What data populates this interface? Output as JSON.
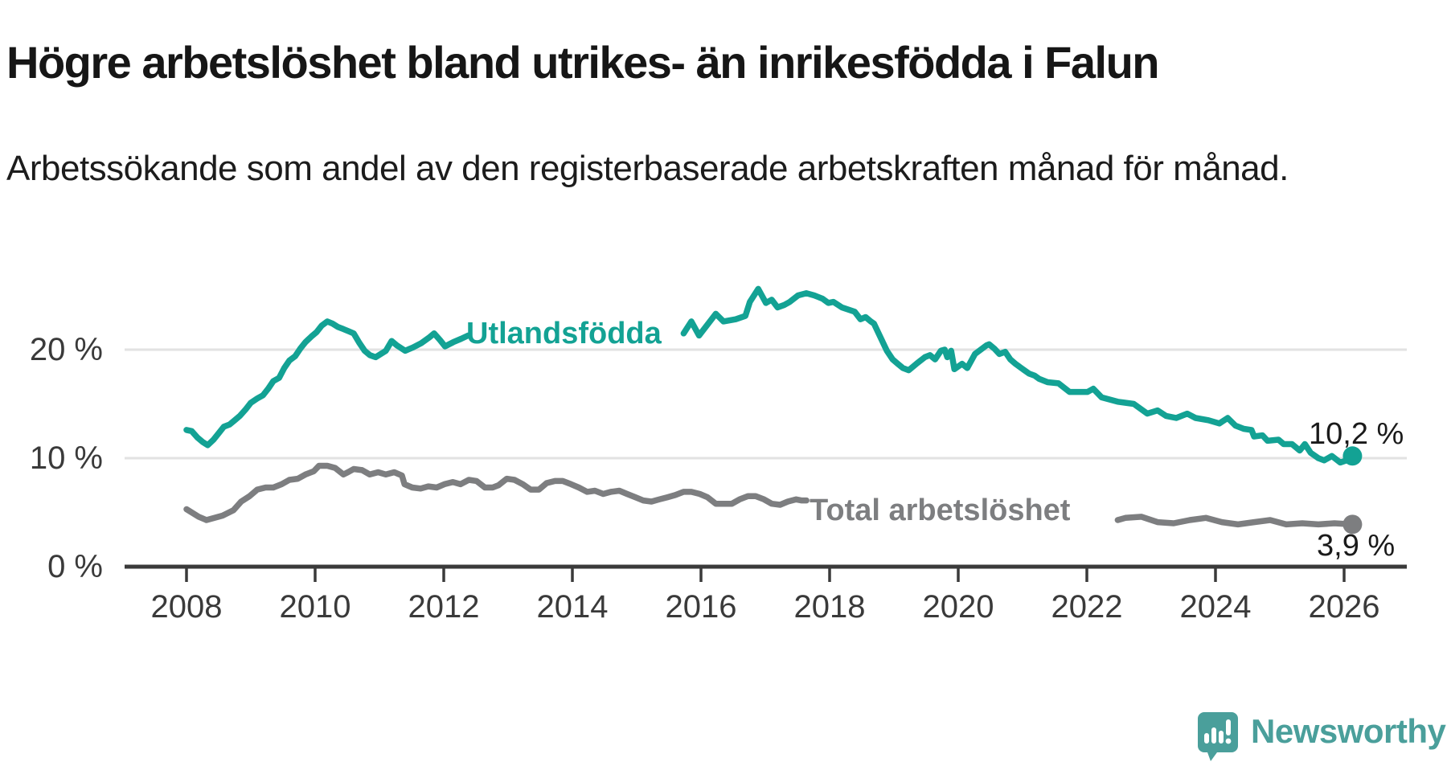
{
  "header": {
    "title": "Högre arbetslöshet bland utrikes- än inrikesfödda i Falun",
    "subtitle": "Arbetssökande som andel av den registerbaserade arbetskraften månad för månad."
  },
  "chart_data": {
    "type": "line",
    "unit": "%",
    "grid": "horizontal-only",
    "x_axis": {
      "min": 2008,
      "max": 2026.5,
      "tick_years": [
        2008,
        2010,
        2012,
        2014,
        2016,
        2018,
        2020,
        2022,
        2024,
        2026
      ],
      "tick_labels": [
        "2008",
        "2010",
        "2012",
        "2014",
        "2016",
        "2018",
        "2020",
        "2022",
        "2024",
        "2026"
      ]
    },
    "y_axis": {
      "min": 0,
      "max": 26,
      "ticks": [
        0,
        10,
        20
      ],
      "tick_labels": [
        "0 %",
        "10 %",
        "20 %"
      ]
    },
    "series": [
      {
        "name": "Utlandsfödda",
        "color": "#13a294",
        "end_label": "10,2 %",
        "end_value": 10.2,
        "label_note": "inline label drawn over a gap in the line 2012-2016",
        "segments": [
          [
            [
              2008.0,
              12.6
            ],
            [
              2008.08,
              12.5
            ],
            [
              2008.17,
              11.9
            ],
            [
              2008.25,
              11.5
            ],
            [
              2008.33,
              11.2
            ],
            [
              2008.42,
              11.7
            ],
            [
              2008.5,
              12.3
            ],
            [
              2008.58,
              12.9
            ],
            [
              2008.67,
              13.1
            ],
            [
              2008.75,
              13.5
            ],
            [
              2008.83,
              13.9
            ],
            [
              2008.92,
              14.5
            ],
            [
              2009.0,
              15.1
            ],
            [
              2009.1,
              15.5
            ],
            [
              2009.19,
              15.8
            ],
            [
              2009.27,
              16.4
            ],
            [
              2009.35,
              17.1
            ],
            [
              2009.44,
              17.4
            ],
            [
              2009.52,
              18.3
            ],
            [
              2009.6,
              19.0
            ],
            [
              2009.69,
              19.4
            ],
            [
              2009.77,
              20.1
            ],
            [
              2009.85,
              20.7
            ],
            [
              2009.94,
              21.2
            ],
            [
              2010.02,
              21.6
            ],
            [
              2010.1,
              22.2
            ],
            [
              2010.19,
              22.6
            ],
            [
              2010.27,
              22.4
            ],
            [
              2010.35,
              22.1
            ],
            [
              2010.44,
              21.9
            ],
            [
              2010.52,
              21.7
            ],
            [
              2010.6,
              21.5
            ],
            [
              2010.69,
              20.6
            ],
            [
              2010.77,
              19.9
            ],
            [
              2010.85,
              19.5
            ],
            [
              2010.94,
              19.3
            ],
            [
              2011.02,
              19.6
            ],
            [
              2011.1,
              19.9
            ],
            [
              2011.19,
              20.8
            ],
            [
              2011.27,
              20.4
            ],
            [
              2011.4,
              19.9
            ],
            [
              2011.52,
              20.2
            ],
            [
              2011.65,
              20.6
            ],
            [
              2011.77,
              21.1
            ],
            [
              2011.85,
              21.5
            ],
            [
              2011.94,
              20.9
            ],
            [
              2012.02,
              20.3
            ],
            [
              2012.15,
              20.7
            ],
            [
              2012.27,
              21.0
            ],
            [
              2012.38,
              21.3
            ]
          ],
          [
            [
              2015.73,
              21.5
            ],
            [
              2015.85,
              22.6
            ],
            [
              2015.97,
              21.3
            ],
            [
              2016.23,
              23.3
            ],
            [
              2016.35,
              22.6
            ],
            [
              2016.54,
              22.8
            ],
            [
              2016.69,
              23.1
            ],
            [
              2016.76,
              24.4
            ],
            [
              2016.89,
              25.6
            ],
            [
              2017.01,
              24.3
            ],
            [
              2017.1,
              24.6
            ],
            [
              2017.19,
              23.9
            ],
            [
              2017.29,
              24.1
            ],
            [
              2017.38,
              24.4
            ],
            [
              2017.51,
              25.0
            ],
            [
              2017.64,
              25.2
            ],
            [
              2017.76,
              25.0
            ],
            [
              2017.89,
              24.7
            ],
            [
              2017.98,
              24.3
            ],
            [
              2018.06,
              24.4
            ],
            [
              2018.19,
              23.9
            ],
            [
              2018.39,
              23.5
            ],
            [
              2018.48,
              22.8
            ],
            [
              2018.56,
              23.0
            ],
            [
              2018.64,
              22.6
            ],
            [
              2018.69,
              22.4
            ],
            [
              2018.81,
              20.9
            ],
            [
              2018.89,
              19.9
            ],
            [
              2018.98,
              19.1
            ],
            [
              2019.06,
              18.7
            ],
            [
              2019.14,
              18.3
            ],
            [
              2019.23,
              18.1
            ],
            [
              2019.35,
              18.7
            ],
            [
              2019.48,
              19.3
            ],
            [
              2019.56,
              19.5
            ],
            [
              2019.64,
              19.1
            ],
            [
              2019.73,
              19.9
            ],
            [
              2019.79,
              20.0
            ],
            [
              2019.83,
              19.3
            ],
            [
              2019.89,
              19.9
            ],
            [
              2019.94,
              18.2
            ],
            [
              2020.06,
              18.7
            ],
            [
              2020.14,
              18.3
            ],
            [
              2020.26,
              19.6
            ],
            [
              2020.35,
              20.0
            ],
            [
              2020.44,
              20.4
            ],
            [
              2020.48,
              20.5
            ],
            [
              2020.56,
              20.1
            ],
            [
              2020.64,
              19.6
            ],
            [
              2020.73,
              19.8
            ],
            [
              2020.81,
              19.1
            ],
            [
              2020.89,
              18.7
            ],
            [
              2020.98,
              18.3
            ],
            [
              2021.1,
              17.8
            ],
            [
              2021.19,
              17.6
            ],
            [
              2021.26,
              17.3
            ],
            [
              2021.39,
              17.0
            ],
            [
              2021.56,
              16.9
            ],
            [
              2021.73,
              16.1
            ],
            [
              2022.01,
              16.1
            ],
            [
              2022.1,
              16.4
            ],
            [
              2022.23,
              15.6
            ],
            [
              2022.48,
              15.2
            ],
            [
              2022.73,
              15.0
            ],
            [
              2022.94,
              14.1
            ],
            [
              2023.1,
              14.4
            ],
            [
              2023.23,
              13.9
            ],
            [
              2023.39,
              13.7
            ],
            [
              2023.56,
              14.1
            ],
            [
              2023.69,
              13.7
            ],
            [
              2023.89,
              13.5
            ],
            [
              2024.06,
              13.2
            ],
            [
              2024.19,
              13.7
            ],
            [
              2024.31,
              13.0
            ],
            [
              2024.44,
              12.7
            ],
            [
              2024.56,
              12.6
            ],
            [
              2024.6,
              12.0
            ],
            [
              2024.73,
              12.1
            ],
            [
              2024.81,
              11.6
            ],
            [
              2024.98,
              11.7
            ],
            [
              2025.06,
              11.3
            ],
            [
              2025.19,
              11.3
            ],
            [
              2025.31,
              10.7
            ],
            [
              2025.39,
              11.3
            ],
            [
              2025.48,
              10.5
            ],
            [
              2025.6,
              10.0
            ],
            [
              2025.69,
              9.8
            ],
            [
              2025.81,
              10.2
            ],
            [
              2025.94,
              9.6
            ],
            [
              2026.04,
              9.8
            ],
            [
              2026.13,
              10.2
            ]
          ]
        ]
      },
      {
        "name": "Total arbetslöshet",
        "color": "#7d7e80",
        "end_label": "3,9 %",
        "end_value": 3.9,
        "label_note": "inline label drawn over a gap in the line 2018-2022",
        "segments": [
          [
            [
              2008.0,
              5.3
            ],
            [
              2008.19,
              4.6
            ],
            [
              2008.31,
              4.3
            ],
            [
              2008.56,
              4.7
            ],
            [
              2008.73,
              5.2
            ],
            [
              2008.85,
              6.0
            ],
            [
              2008.98,
              6.5
            ],
            [
              2009.1,
              7.1
            ],
            [
              2009.23,
              7.3
            ],
            [
              2009.35,
              7.3
            ],
            [
              2009.48,
              7.6
            ],
            [
              2009.6,
              8.0
            ],
            [
              2009.73,
              8.1
            ],
            [
              2009.85,
              8.5
            ],
            [
              2009.98,
              8.8
            ],
            [
              2010.06,
              9.3
            ],
            [
              2010.19,
              9.3
            ],
            [
              2010.31,
              9.1
            ],
            [
              2010.44,
              8.5
            ],
            [
              2010.51,
              8.7
            ],
            [
              2010.6,
              9.0
            ],
            [
              2010.73,
              8.9
            ],
            [
              2010.85,
              8.5
            ],
            [
              2010.98,
              8.7
            ],
            [
              2011.1,
              8.5
            ],
            [
              2011.23,
              8.7
            ],
            [
              2011.35,
              8.4
            ],
            [
              2011.39,
              7.6
            ],
            [
              2011.51,
              7.3
            ],
            [
              2011.64,
              7.2
            ],
            [
              2011.76,
              7.4
            ],
            [
              2011.89,
              7.3
            ],
            [
              2012.01,
              7.6
            ],
            [
              2012.14,
              7.8
            ],
            [
              2012.26,
              7.6
            ],
            [
              2012.39,
              8.0
            ],
            [
              2012.51,
              7.9
            ],
            [
              2012.64,
              7.3
            ],
            [
              2012.76,
              7.3
            ],
            [
              2012.85,
              7.5
            ],
            [
              2012.98,
              8.1
            ],
            [
              2013.1,
              8.0
            ],
            [
              2013.23,
              7.6
            ],
            [
              2013.35,
              7.1
            ],
            [
              2013.48,
              7.1
            ],
            [
              2013.6,
              7.7
            ],
            [
              2013.73,
              7.9
            ],
            [
              2013.85,
              7.9
            ],
            [
              2013.98,
              7.6
            ],
            [
              2014.1,
              7.3
            ],
            [
              2014.23,
              6.9
            ],
            [
              2014.35,
              7.0
            ],
            [
              2014.48,
              6.7
            ],
            [
              2014.6,
              6.9
            ],
            [
              2014.73,
              7.0
            ],
            [
              2014.85,
              6.7
            ],
            [
              2014.98,
              6.4
            ],
            [
              2015.1,
              6.1
            ],
            [
              2015.23,
              6.0
            ],
            [
              2015.35,
              6.2
            ],
            [
              2015.48,
              6.4
            ],
            [
              2015.6,
              6.6
            ],
            [
              2015.73,
              6.9
            ],
            [
              2015.85,
              6.9
            ],
            [
              2015.98,
              6.7
            ],
            [
              2016.1,
              6.4
            ],
            [
              2016.23,
              5.8
            ],
            [
              2016.35,
              5.8
            ],
            [
              2016.48,
              5.8
            ],
            [
              2016.6,
              6.2
            ],
            [
              2016.73,
              6.5
            ],
            [
              2016.85,
              6.5
            ],
            [
              2016.98,
              6.2
            ],
            [
              2017.1,
              5.8
            ],
            [
              2017.23,
              5.7
            ],
            [
              2017.35,
              6.0
            ],
            [
              2017.48,
              6.2
            ],
            [
              2017.56,
              6.1
            ],
            [
              2017.64,
              6.1
            ]
          ],
          [
            [
              2022.48,
              4.3
            ],
            [
              2022.6,
              4.5
            ],
            [
              2022.85,
              4.6
            ],
            [
              2023.1,
              4.1
            ],
            [
              2023.35,
              4.0
            ],
            [
              2023.6,
              4.3
            ],
            [
              2023.85,
              4.5
            ],
            [
              2024.1,
              4.1
            ],
            [
              2024.35,
              3.9
            ],
            [
              2024.6,
              4.1
            ],
            [
              2024.85,
              4.3
            ],
            [
              2025.1,
              3.9
            ],
            [
              2025.35,
              4.0
            ],
            [
              2025.6,
              3.9
            ],
            [
              2025.85,
              4.0
            ],
            [
              2026.13,
              3.9
            ]
          ]
        ]
      }
    ]
  },
  "branding": {
    "logo_text": "Newsworthy",
    "logo_color": "#4a9f9b"
  }
}
